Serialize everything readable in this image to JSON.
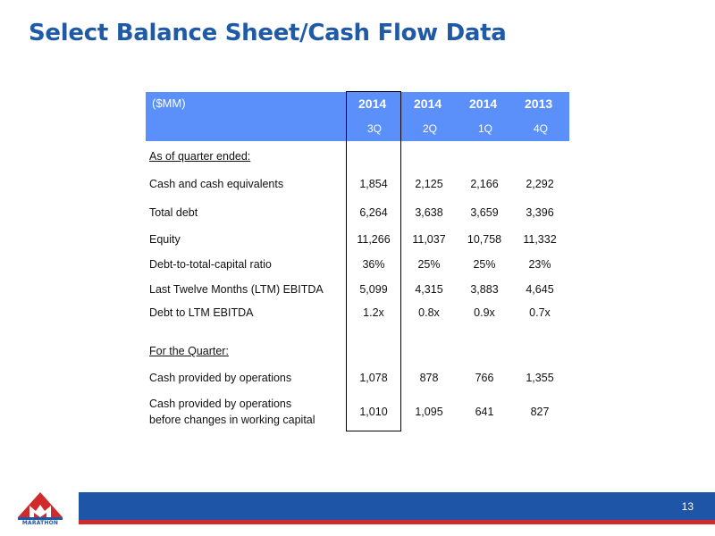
{
  "title": "Select Balance Sheet/Cash Flow Data",
  "page_number": "13",
  "logo_text": "MARATHON",
  "colors": {
    "title": "#1f5aa6",
    "header_band": "#5b8ff9",
    "footer_blue": "#1e55a6",
    "footer_red": "#cf2b2b"
  },
  "table": {
    "unit_label": "($MM)",
    "columns": [
      {
        "year": "2014",
        "quarter": "3Q"
      },
      {
        "year": "2014",
        "quarter": "2Q"
      },
      {
        "year": "2014",
        "quarter": "1Q"
      },
      {
        "year": "2013",
        "quarter": "4Q"
      }
    ],
    "section_1": "As of quarter ended:",
    "section_2": "For the Quarter:",
    "rows": [
      {
        "label": "Cash and cash equivalents",
        "values": [
          "1,854",
          "2,125",
          "2,166",
          "2,292"
        ]
      },
      {
        "label": "Total debt",
        "values": [
          "6,264",
          "3,638",
          "3,659",
          "3,396"
        ]
      },
      {
        "label": "Equity",
        "values": [
          "11,266",
          "11,037",
          "10,758",
          "11,332"
        ]
      },
      {
        "label": "Debt-to-total-capital ratio",
        "values": [
          "36%",
          "25%",
          "25%",
          "23%"
        ]
      },
      {
        "label": "Last Twelve Months (LTM) EBITDA",
        "values": [
          "5,099",
          "4,315",
          "3,883",
          "4,645"
        ]
      },
      {
        "label": "Debt to LTM EBITDA",
        "values": [
          "1.2x",
          "0.8x",
          "0.9x",
          "0.7x"
        ]
      },
      {
        "label": "Cash provided by operations",
        "values": [
          "1,078",
          "878",
          "766",
          "1,355"
        ]
      },
      {
        "label": "Cash provided by operations",
        "label_line2": "before changes in working capital",
        "values": [
          "1,010",
          "1,095",
          "641",
          "827"
        ]
      }
    ]
  }
}
